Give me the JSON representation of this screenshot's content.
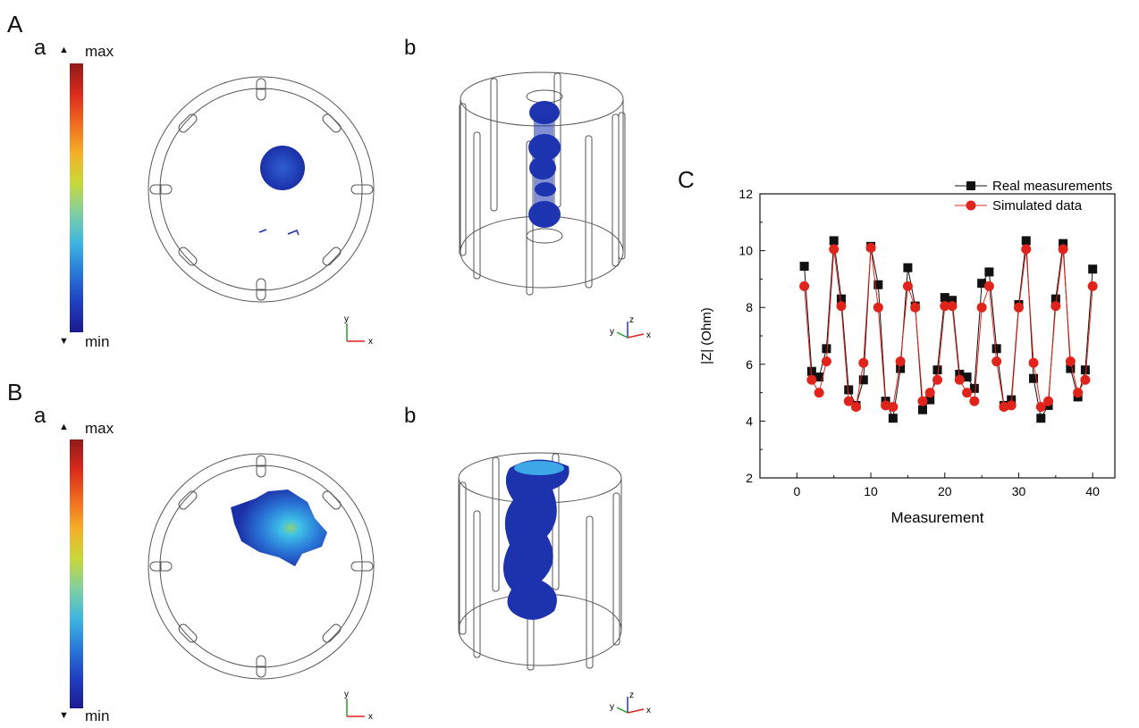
{
  "panels": {
    "A": "A",
    "A_a": "a",
    "A_b": "b",
    "B": "B",
    "B_a": "a",
    "B_b": "b",
    "C": "C"
  },
  "colorbar": {
    "max_label": "max",
    "min_label": "min",
    "gradient": [
      "#1b1a8c",
      "#1f3fc0",
      "#2a78d8",
      "#3fb6e0",
      "#7fd0a0",
      "#c8d83a",
      "#f4b028",
      "#f06a20",
      "#d92a1c",
      "#8e1a1a"
    ]
  },
  "axes_triad": {
    "x": "x",
    "y": "y",
    "z": "z"
  },
  "colors": {
    "real": "#111111",
    "simulated": "#e0241b",
    "blob_dark": "#1b2fa8",
    "blob_light": "#3ea8e6"
  },
  "chart_data": {
    "type": "line",
    "xlabel": "Measurement",
    "ylabel": "|Z| (Ohm)",
    "xlim": [
      -5,
      43
    ],
    "ylim": [
      2,
      12
    ],
    "xticks": [
      0,
      10,
      20,
      30,
      40
    ],
    "yticks": [
      2,
      4,
      6,
      8,
      10,
      12
    ],
    "legend_position": "top-right",
    "x": [
      1,
      2,
      3,
      4,
      5,
      6,
      7,
      8,
      9,
      10,
      11,
      12,
      13,
      14,
      15,
      16,
      17,
      18,
      19,
      20,
      21,
      22,
      23,
      24,
      25,
      26,
      27,
      28,
      29,
      30,
      31,
      32,
      33,
      34,
      35,
      36,
      37,
      38,
      39,
      40
    ],
    "series": [
      {
        "name": "Real measurements",
        "marker": "square",
        "values": [
          9.45,
          5.75,
          5.55,
          6.55,
          10.35,
          8.3,
          5.1,
          4.55,
          5.45,
          10.15,
          8.8,
          4.7,
          4.1,
          5.85,
          9.4,
          8.05,
          4.4,
          4.75,
          5.8,
          8.35,
          8.25,
          5.65,
          5.55,
          5.15,
          8.85,
          9.25,
          6.55,
          4.55,
          4.75,
          8.1,
          10.35,
          5.5,
          4.1,
          4.55,
          8.3,
          10.25,
          5.85,
          4.85,
          5.8,
          9.35
        ]
      },
      {
        "name": "Simulated data",
        "marker": "circle",
        "values": [
          8.75,
          5.45,
          5.0,
          6.1,
          10.05,
          8.05,
          4.7,
          4.5,
          6.05,
          10.1,
          8.0,
          4.55,
          4.5,
          6.1,
          8.75,
          8.0,
          4.7,
          5.0,
          5.45,
          8.05,
          8.05,
          5.45,
          5.0,
          4.7,
          8.0,
          8.75,
          6.1,
          4.5,
          4.55,
          8.0,
          10.05,
          6.05,
          4.5,
          4.7,
          8.05,
          10.05,
          6.1,
          5.0,
          5.45,
          8.75
        ]
      }
    ]
  }
}
